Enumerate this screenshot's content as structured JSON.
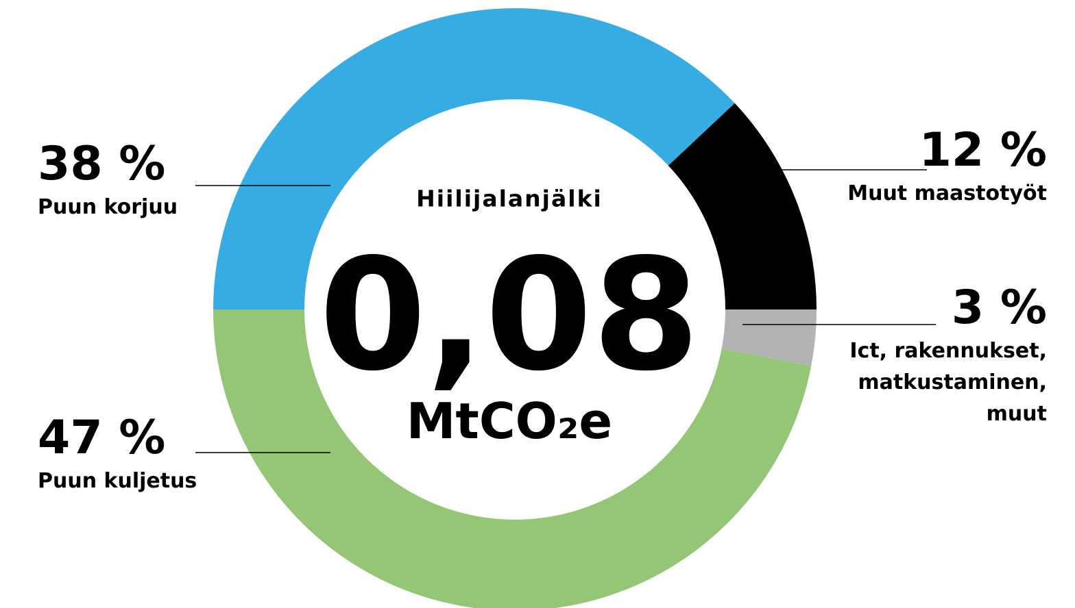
{
  "chart_data": {
    "type": "donut",
    "title": "Hiilijalanjälki",
    "center_value": "0,08",
    "center_unit": "MtCO₂e",
    "categories": [
      "Puun korjuu",
      "Muut maastotyöt",
      "Ict, rakennukset, matkustaminen, muut",
      "Puun kuljetus"
    ],
    "values": [
      38,
      12,
      3,
      47
    ],
    "value_labels": [
      "38 %",
      "12 %",
      "3 %",
      "47 %"
    ],
    "colors": [
      "#36ace2",
      "#000000",
      "#b3b3b3",
      "#94c676"
    ]
  }
}
